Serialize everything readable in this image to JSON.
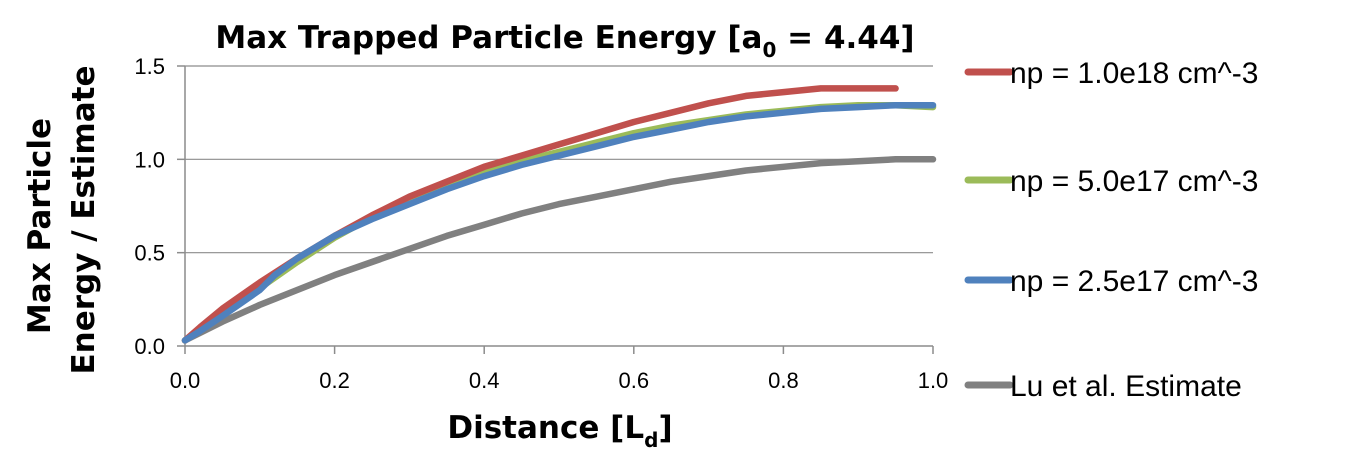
{
  "chart_data": {
    "type": "line",
    "title": {
      "prefix": "Max Trapped Particle Energy [a",
      "subscript": "0",
      "suffix": " = 4.44]"
    },
    "xlabel": {
      "prefix": "Distance [L",
      "subscript": "d",
      "suffix": "]"
    },
    "ylabel": [
      "Max Particle",
      "Energy / Estimate"
    ],
    "xlim": [
      0.0,
      1.0
    ],
    "ylim": [
      0.0,
      1.5
    ],
    "x_ticks": [
      "0.0",
      "0.2",
      "0.4",
      "0.6",
      "0.8",
      "1.0"
    ],
    "y_ticks": [
      "0.0",
      "0.5",
      "1.0",
      "1.5"
    ],
    "grid": true,
    "legend_position": "right",
    "series": [
      {
        "name": "np = 1.0e18 cm^-3",
        "color": "#c0504d",
        "x": [
          0.0,
          0.02,
          0.05,
          0.1,
          0.15,
          0.2,
          0.25,
          0.3,
          0.35,
          0.4,
          0.45,
          0.5,
          0.55,
          0.6,
          0.65,
          0.7,
          0.75,
          0.8,
          0.85,
          0.9,
          0.95
        ],
        "y": [
          0.03,
          0.1,
          0.2,
          0.34,
          0.47,
          0.59,
          0.7,
          0.8,
          0.88,
          0.96,
          1.02,
          1.08,
          1.14,
          1.2,
          1.25,
          1.3,
          1.34,
          1.36,
          1.38,
          1.38,
          1.38
        ]
      },
      {
        "name": "np = 5.0e17 cm^-3",
        "color": "#9bbb59",
        "x": [
          0.0,
          0.02,
          0.05,
          0.1,
          0.15,
          0.2,
          0.25,
          0.3,
          0.35,
          0.4,
          0.45,
          0.5,
          0.55,
          0.6,
          0.65,
          0.7,
          0.75,
          0.8,
          0.85,
          0.9,
          0.95,
          1.0
        ],
        "y": [
          0.03,
          0.09,
          0.18,
          0.31,
          0.45,
          0.58,
          0.69,
          0.78,
          0.86,
          0.93,
          0.99,
          1.04,
          1.09,
          1.14,
          1.18,
          1.21,
          1.24,
          1.26,
          1.28,
          1.29,
          1.29,
          1.28
        ]
      },
      {
        "name": "np = 2.5e17 cm^-3",
        "color": "#4f81bd",
        "x": [
          0.0,
          0.02,
          0.05,
          0.1,
          0.12,
          0.15,
          0.2,
          0.25,
          0.3,
          0.35,
          0.4,
          0.45,
          0.5,
          0.55,
          0.6,
          0.65,
          0.7,
          0.75,
          0.8,
          0.85,
          0.9,
          0.95,
          1.0
        ],
        "y": [
          0.03,
          0.08,
          0.16,
          0.3,
          0.38,
          0.47,
          0.59,
          0.68,
          0.76,
          0.84,
          0.91,
          0.97,
          1.02,
          1.07,
          1.12,
          1.16,
          1.2,
          1.23,
          1.25,
          1.27,
          1.28,
          1.29,
          1.29
        ]
      },
      {
        "name": "Lu et al. Estimate",
        "color": "#808080",
        "x": [
          0.0,
          0.05,
          0.1,
          0.15,
          0.2,
          0.25,
          0.3,
          0.35,
          0.4,
          0.45,
          0.5,
          0.55,
          0.6,
          0.65,
          0.7,
          0.75,
          0.8,
          0.85,
          0.9,
          0.95,
          1.0
        ],
        "y": [
          0.03,
          0.13,
          0.22,
          0.3,
          0.38,
          0.45,
          0.52,
          0.59,
          0.65,
          0.71,
          0.76,
          0.8,
          0.84,
          0.88,
          0.91,
          0.94,
          0.96,
          0.98,
          0.99,
          1.0,
          1.0
        ]
      }
    ]
  }
}
